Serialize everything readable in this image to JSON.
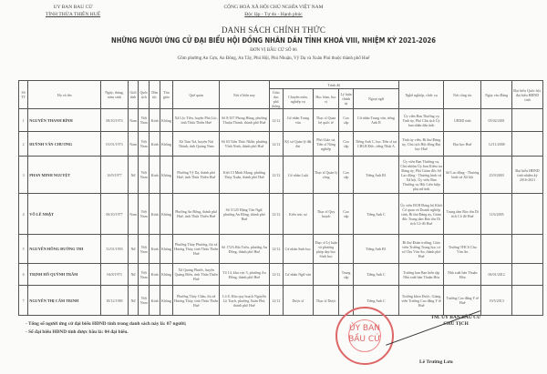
{
  "header": {
    "org_line1": "UY BAN BAU CỬ",
    "org_line2": "TỈNH THỪA THIÊN HUẾ",
    "nation": "CỘNG HOÀ XÃ HỘI CHỦ NGHĨA VIỆT NAM",
    "motto": "Độc lập - Tự do - Hạnh phúc"
  },
  "title": {
    "main": "DANH SÁCH CHÍNH THỨC",
    "sub": "NHỮNG NGƯỜI ỨNG CỬ ĐẠI BIỂU HỘI ĐỒNG NHÂN DÂN TỈNH KHOÁ VIII, NHIỆM KỲ 2021-2026",
    "unit": "ĐƠN VỊ BẦU CỬ SỐ 06",
    "area": "Gồm phường An Cựu, An Đông, An Tây, Phú Hội, Phú Nhuận, Vỹ Dạ và Xuân Phú thuộc thành phố Huế"
  },
  "table": {
    "headers": {
      "stt": "Số TT",
      "name": "Họ và tên",
      "dob": "Ngày, tháng, năm sinh",
      "gender": "Giới tính",
      "nationality": "Quốc tịch",
      "ethnic": "Dân tộc",
      "religion": "Tôn giáo",
      "hometown": "Quê quán",
      "residence": "Nơi ở hiện nay",
      "education": "Trình độ",
      "gdpt": "Giáo dục phổ thông",
      "major": "Chuyên môn, nghiệp vụ",
      "degree": "Học hàm, học vị",
      "politics": "Lý luận chính trị",
      "language": "Ngoại ngữ",
      "job": "Nghề nghiệp, chức vụ",
      "workplace": "Nơi công tác",
      "party_date": "Ngày vào Đảng",
      "delegate": "Đại biểu Quốc hội, đại biểu HĐND tỉnh"
    },
    "rows": [
      [
        "1",
        "NGUYỄN THANH BÌNH",
        "08/10/1974",
        "Nam",
        "Việt Nam",
        "Kinh",
        "Không",
        "Xã Lộc Tiến, huyện Phú Lộc, tỉnh Thừa Thiên Huế",
        "Số 8/107 Phong Hùng, phường Thuận Thành, thành phố Huế",
        "12/12",
        "Cử nhân Trung văn",
        "Thạc sĩ Quan hệ quốc tế",
        "Cao cấp",
        "Cử nhân Trung văn, tiếng Anh B",
        "Ủy viên Ban Thường vụ Tỉnh ủy, Phó Chủ tịch Ủy ban nhân dân tỉnh",
        "UBND tỉnh",
        "05/02/2001",
        ""
      ],
      [
        "2",
        "HUỲNH VĂN CHƯƠNG",
        "01/01/1973",
        "Nam",
        "Việt Nam",
        "Kinh",
        "Không",
        "Xã Tam Trà, huyện Núi Thành, tỉnh Quảng Nam",
        "Số 63 Trần Thúc Nhẫn, phường Vĩnh Ninh, thành phố Huế",
        "12/12",
        "Kỹ sư Quản lý đất đai",
        "Phó Giáo sư, Tiến sĩ Nông nghiệp",
        "Cao cấp",
        "Tiếng Anh C, học Tiến sĩ tại CHLB Đức, tiếng Nhật A",
        "Tỉnh ủy viên, Bí thư Đảng ủy, Chủ tịch Hội đồng Đại học Huế",
        "Đại học Huế",
        "12/11/2008",
        ""
      ],
      [
        "3",
        "PHAN MINH NGUYỆT",
        "16/9/1977",
        "Nữ",
        "Việt Nam",
        "Kinh",
        "Không",
        "Phường Vỹ Dạ, thành phố Huế, tỉnh Thừa Thiên Huế",
        "Kiệt 13 Minh Mạng, phường Thủy Xuân, thành phố Huế",
        "12/12",
        "Cử nhân Luật",
        "Thạc sĩ Quản lý công",
        "Cao cấp",
        "Tiếng Anh B1",
        "Ủy viên Ban Thường vụ, Chủ nhiệm Ủy ban Kiểm tra Đảng ủy, Phó Giám đốc Sở Lao động - Thương binh và Xã hội, Ủy viên Ban Thường vụ Hội Liên hiệp phụ nữ tỉnh",
        "Sở Lao động - Thương binh và Xã hội",
        "25/9/2003",
        "Đại biểu HĐND tỉnh nhiệm kỳ 2016-2021"
      ],
      [
        "4",
        "VÕ LÊ NHẬT",
        "06/10/1977",
        "Nam",
        "Việt Nam",
        "Kinh",
        "Không",
        "Phường An Đông, thành phố Huế, tỉnh Thừa Thiên Huế",
        "Số 5/125 Đặng Văn Ngữ, phường An Đông, thành phố Huế",
        "12/12",
        "Kiến trúc sư",
        "Thạc sĩ Quy hoạch",
        "Cao cấp",
        "Tiếng Anh C",
        "Ủy viên BCH Đảng bộ Khối Cơ quan và Doanh nghiệp tỉnh, Bí thư Đảng ủy, Giám đốc Trung tâm Bảo tồn Di tích Cố đô Huế",
        "Trung tâm Bảo tồn Di tích Cố đô Huế",
        "11/6/2005",
        ""
      ],
      [
        "5",
        "NGUYỄN HỒNG ĐƯỜNG THI",
        "31/01/1993",
        "Nữ",
        "Việt Nam",
        "Kinh",
        "Không",
        "Phường Thủy Phương, thị xã Hương Thủy, tỉnh Thừa Thiên Huế",
        "Số 172A Hải Triều, phường An Đông, thành phố Huế",
        "12/12",
        "Cử nhân Sinh học",
        "Thạc sĩ Lý luận và phương pháp dạy học Sinh học",
        "",
        "Tiếng Anh B1",
        "Bí thư Đoàn trường, Giáo viên Trường Trung học cơ sở Chu Văn An, thành phố Huế",
        "Trường THCS Chu Văn An",
        "",
        ""
      ],
      [
        "6",
        "TRỊNH HỒ QUỲNH TRÂM",
        "04/8/1973",
        "Nữ",
        "Việt Nam",
        "Kinh",
        "Không",
        "Xã Quảng Phước, huyện Quảng Điền, tỉnh Thừa Thiên Huế",
        "Tổ 14, khu vực 5, phường An Đông, thành phố Huế",
        "12/12",
        "Cử nhân Ngữ văn",
        "",
        "Trung cấp",
        "Tiếng Anh C",
        "Trưởng ban Ban biên tập Nhà xuất bản Thuận Hóa",
        "Nhà xuất bản Thuận Hóa",
        "06/01/2012",
        ""
      ],
      [
        "7",
        "NGUYỄN THỊ CẨM TRINH",
        "18/12/1985",
        "Nữ",
        "Việt Nam",
        "Kinh",
        "Không",
        "Phường Thủy Châu, thị xã Hương Thủy, tỉnh Thừa Thiên Huế",
        "Lô 8, Khu quy hoạch Nguyễn Lộ Trạch, phường Xuân Phú, thành phố Huế",
        "12/12",
        "Dược sĩ",
        "Thạc sĩ Dược",
        "",
        "Tiếng Anh C",
        "Trưởng khoa Dược, Giảng viên Trường Cao đẳng Y tế Huế",
        "Trường Cao đẳng Y tế Huế",
        "19/5/2013",
        ""
      ]
    ]
  },
  "notes": [
    "- Tổng số người ứng cử đại biểu HĐND tỉnh trong danh sách này là: 07 người;",
    "- Số đại biểu HĐND tỉnh được bầu là: 04 đại biểu."
  ],
  "signature": {
    "org": "TM. ỦY BAN BẦU CỬ",
    "role": "CHỦ TỊCH",
    "name": "Lê Trường Lưu"
  },
  "stamp": {
    "text_line1": "ỦY BAN",
    "text_line2": "BẦU CỬ",
    "color": "#d66666"
  }
}
